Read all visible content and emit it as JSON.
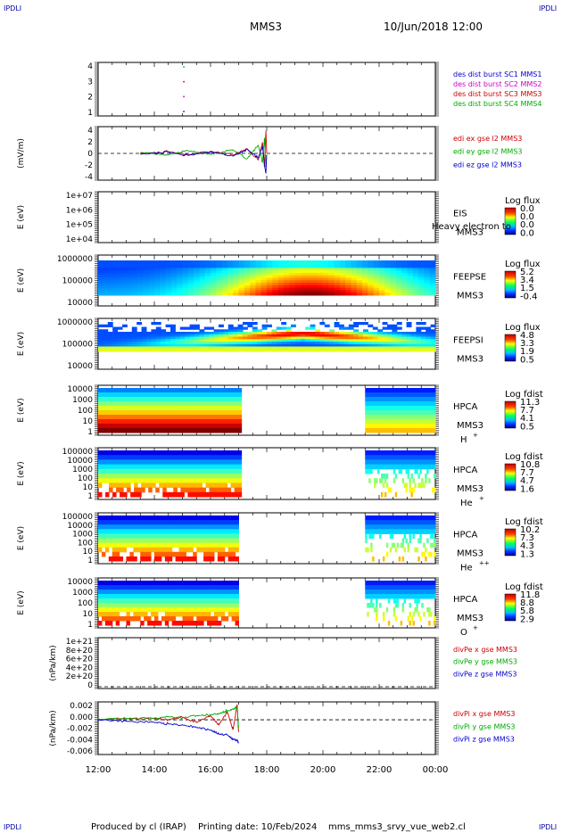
{
  "corner_tag": "IPDLI",
  "header": {
    "spacecraft": "MMS3",
    "datetime": "10/Jun/2018 12:00"
  },
  "footer": {
    "produced_by": "Produced by cl (IRAP)",
    "printing_date": "Printing date: 10/Feb/2024",
    "file": "mms_mms3_srvy_vue_web2.cl"
  },
  "time_axis": {
    "ticks": [
      "12:00",
      "14:00",
      "16:00",
      "18:00",
      "20:00",
      "22:00",
      "00:00"
    ],
    "range_hours": [
      12,
      24
    ]
  },
  "chart_data": [
    {
      "id": "p1",
      "type": "scatter",
      "ylabel": "",
      "yticks": [
        "4",
        "3",
        "2",
        "1"
      ],
      "ylim": [
        0.7,
        4.3
      ],
      "legend": [
        {
          "text": "des dist burst SC1 MMS1",
          "color": "#0000cc"
        },
        {
          "text": "des dist burst SC2 MMS2",
          "color": "#cc00cc"
        },
        {
          "text": "des dist burst SC3 MMS3",
          "color": "#cc0000"
        },
        {
          "text": "des dist burst SC4 MMS4",
          "color": "#00aa00"
        }
      ],
      "series": [
        {
          "name": "des dist burst SC4 MMS4",
          "x": [
            15.05
          ],
          "y": [
            4
          ]
        },
        {
          "name": "des dist burst SC3 MMS3",
          "x": [
            15.05
          ],
          "y": [
            3
          ]
        },
        {
          "name": "des dist burst SC2 MMS2",
          "x": [
            15.05
          ],
          "y": [
            2
          ]
        },
        {
          "name": "des dist burst SC1 MMS1",
          "x": [
            15.05
          ],
          "y": [
            1
          ]
        }
      ]
    },
    {
      "id": "p2",
      "type": "line",
      "ylabel": "(mV/m)",
      "yticks": [
        "4",
        "2",
        "0",
        "-2",
        "-4"
      ],
      "ylim": [
        -6,
        6
      ],
      "legend": [
        {
          "text": "edi ex gse l2 MMS3",
          "color": "#cc0000"
        },
        {
          "text": "edi ey gse l2 MMS3",
          "color": "#00aa00"
        },
        {
          "text": "edi ez gse l2 MMS3",
          "color": "#0000cc"
        }
      ],
      "series": [
        {
          "name": "edi ex gse l2 MMS3",
          "x": [
            13.5,
            14.5,
            15.2,
            16.0,
            16.8,
            17.3,
            17.7,
            17.85,
            17.92,
            17.97,
            18.0
          ],
          "y": [
            0,
            0.4,
            -0.3,
            0.5,
            -0.4,
            1.0,
            -1.5,
            2.5,
            -3.0,
            5.0,
            0
          ]
        },
        {
          "name": "edi ey gse l2 MMS3",
          "x": [
            13.5,
            14.5,
            15.2,
            16.0,
            16.8,
            17.3,
            17.7,
            17.85,
            17.92,
            17.97,
            18.0
          ],
          "y": [
            0.2,
            -0.3,
            0.6,
            -0.2,
            0.8,
            -1.2,
            1.8,
            -2.0,
            3.5,
            -3.0,
            0
          ]
        },
        {
          "name": "edi ez gse l2 MMS3",
          "x": [
            13.5,
            14.5,
            15.2,
            16.0,
            16.8,
            17.3,
            17.7,
            17.85,
            17.92,
            17.97,
            18.0
          ],
          "y": [
            -0.2,
            0.3,
            -0.5,
            0.4,
            -0.6,
            0.9,
            -1.0,
            1.5,
            -2.5,
            -4.5,
            0
          ]
        }
      ]
    },
    {
      "id": "p3",
      "type": "heatmap",
      "ylabel": "E (eV)",
      "yticks": [
        "1e+07",
        "1e+06",
        "1e+05",
        "1e+04"
      ],
      "labels": [
        "EIS",
        "MMS3"
      ],
      "overlay_text": "Heavy electron to",
      "cbar": {
        "title": "Log flux",
        "ticks": [
          "0.0",
          "0.0",
          "0.0",
          "0.0"
        ]
      }
    },
    {
      "id": "p4",
      "type": "heatmap",
      "ylabel": "E (eV)",
      "yticks": [
        "1000000",
        "100000",
        "10000"
      ],
      "labels": [
        "FEEPSE",
        "MMS3"
      ],
      "cbar": {
        "title": "Log flux",
        "ticks": [
          "5.2",
          "3.4",
          "1.5",
          "-0.4"
        ]
      }
    },
    {
      "id": "p5",
      "type": "heatmap",
      "ylabel": "E (eV)",
      "yticks": [
        "1000000",
        "100000",
        "10000"
      ],
      "labels": [
        "FEEPSI",
        "MMS3"
      ],
      "cbar": {
        "title": "Log flux",
        "ticks": [
          "4.8",
          "3.3",
          "1.9",
          "0.5"
        ]
      }
    },
    {
      "id": "p6",
      "type": "heatmap",
      "ylabel": "E (eV)",
      "yticks": [
        "10000",
        "1000",
        "100",
        "10",
        "1"
      ],
      "labels": [
        "HPCA",
        "MMS3"
      ],
      "species": "H",
      "charge": "+",
      "cbar": {
        "title": "Log fdist",
        "ticks": [
          "11.3",
          "7.7",
          "4.1",
          "0.5"
        ]
      }
    },
    {
      "id": "p7",
      "type": "heatmap",
      "ylabel": "E (eV)",
      "yticks": [
        "100000",
        "10000",
        "1000",
        "100",
        "10",
        "1"
      ],
      "labels": [
        "HPCA",
        "MMS3"
      ],
      "species": "He",
      "charge": "+",
      "cbar": {
        "title": "Log fdist",
        "ticks": [
          "10.8",
          "7.7",
          "4.7",
          "1.6"
        ]
      }
    },
    {
      "id": "p8",
      "type": "heatmap",
      "ylabel": "E (eV)",
      "yticks": [
        "100000",
        "10000",
        "1000",
        "100",
        "10",
        "1"
      ],
      "labels": [
        "HPCA",
        "MMS3"
      ],
      "species": "He",
      "charge": "++",
      "cbar": {
        "title": "Log fdist",
        "ticks": [
          "10.2",
          "7.3",
          "4.3",
          "1.3"
        ]
      }
    },
    {
      "id": "p9",
      "type": "heatmap",
      "ylabel": "E (eV)",
      "yticks": [
        "10000",
        "1000",
        "100",
        "10",
        "1"
      ],
      "labels": [
        "HPCA",
        "MMS3"
      ],
      "species": "O",
      "charge": "+",
      "cbar": {
        "title": "Log fdist",
        "ticks": [
          "11.8",
          "8.8",
          "5.8",
          "2.9"
        ]
      }
    },
    {
      "id": "p10",
      "type": "line",
      "ylabel": "(nPa/km)",
      "yticks": [
        "1e+21",
        "8e+20",
        "6e+20",
        "4e+20",
        "2e+20",
        "0"
      ],
      "ylim": [
        0,
        1.1e+21
      ],
      "legend": [
        {
          "text": "divPe x gse MMS3",
          "color": "#cc0000"
        },
        {
          "text": "divPe y gse MMS3",
          "color": "#00aa00"
        },
        {
          "text": "divPe z gse MMS3",
          "color": "#0000cc"
        }
      ],
      "series": [
        {
          "name": "divPe x gse MMS3",
          "x": [],
          "y": []
        },
        {
          "name": "divPe y gse MMS3",
          "x": [],
          "y": []
        },
        {
          "name": "divPe z gse MMS3",
          "x": [],
          "y": []
        }
      ]
    },
    {
      "id": "p11",
      "type": "line",
      "ylabel": "(nPa/km)",
      "yticks": [
        "0.002",
        "0.000",
        "-0.002",
        "-0.004",
        "-0.006"
      ],
      "ylim": [
        -0.0068,
        0.0035
      ],
      "legend": [
        {
          "text": "divPi x gse MMS3",
          "color": "#cc0000"
        },
        {
          "text": "divPi y gse MMS3",
          "color": "#00aa00"
        },
        {
          "text": "divPi z gse MMS3",
          "color": "#0000cc"
        }
      ],
      "series": [
        {
          "name": "divPi x gse MMS3",
          "x": [
            12,
            13,
            14,
            14.5,
            15,
            15.5,
            16,
            16.3,
            16.6,
            16.8,
            16.95,
            17.0
          ],
          "y": [
            0.0,
            0.0002,
            0.0003,
            0.0,
            0.0005,
            -0.0005,
            0.0008,
            -0.001,
            0.0015,
            -0.002,
            0.003,
            -0.003
          ]
        },
        {
          "name": "divPi y gse MMS3",
          "x": [
            12,
            13,
            14,
            14.5,
            15,
            15.5,
            16,
            16.3,
            16.6,
            16.8,
            16.95,
            17.0
          ],
          "y": [
            0.0001,
            0.0003,
            0.0002,
            0.0006,
            0.0004,
            0.0008,
            0.001,
            0.0012,
            0.0018,
            0.002,
            0.0025,
            -0.002
          ]
        },
        {
          "name": "divPi z gse MMS3",
          "x": [
            12,
            13,
            14,
            14.5,
            15,
            15.5,
            16,
            16.3,
            16.6,
            16.8,
            16.95,
            17.0
          ],
          "y": [
            0.0,
            -0.0003,
            -0.0005,
            -0.0008,
            -0.001,
            -0.0015,
            -0.002,
            -0.0028,
            -0.003,
            -0.0038,
            -0.004,
            -0.0045
          ]
        }
      ]
    }
  ]
}
